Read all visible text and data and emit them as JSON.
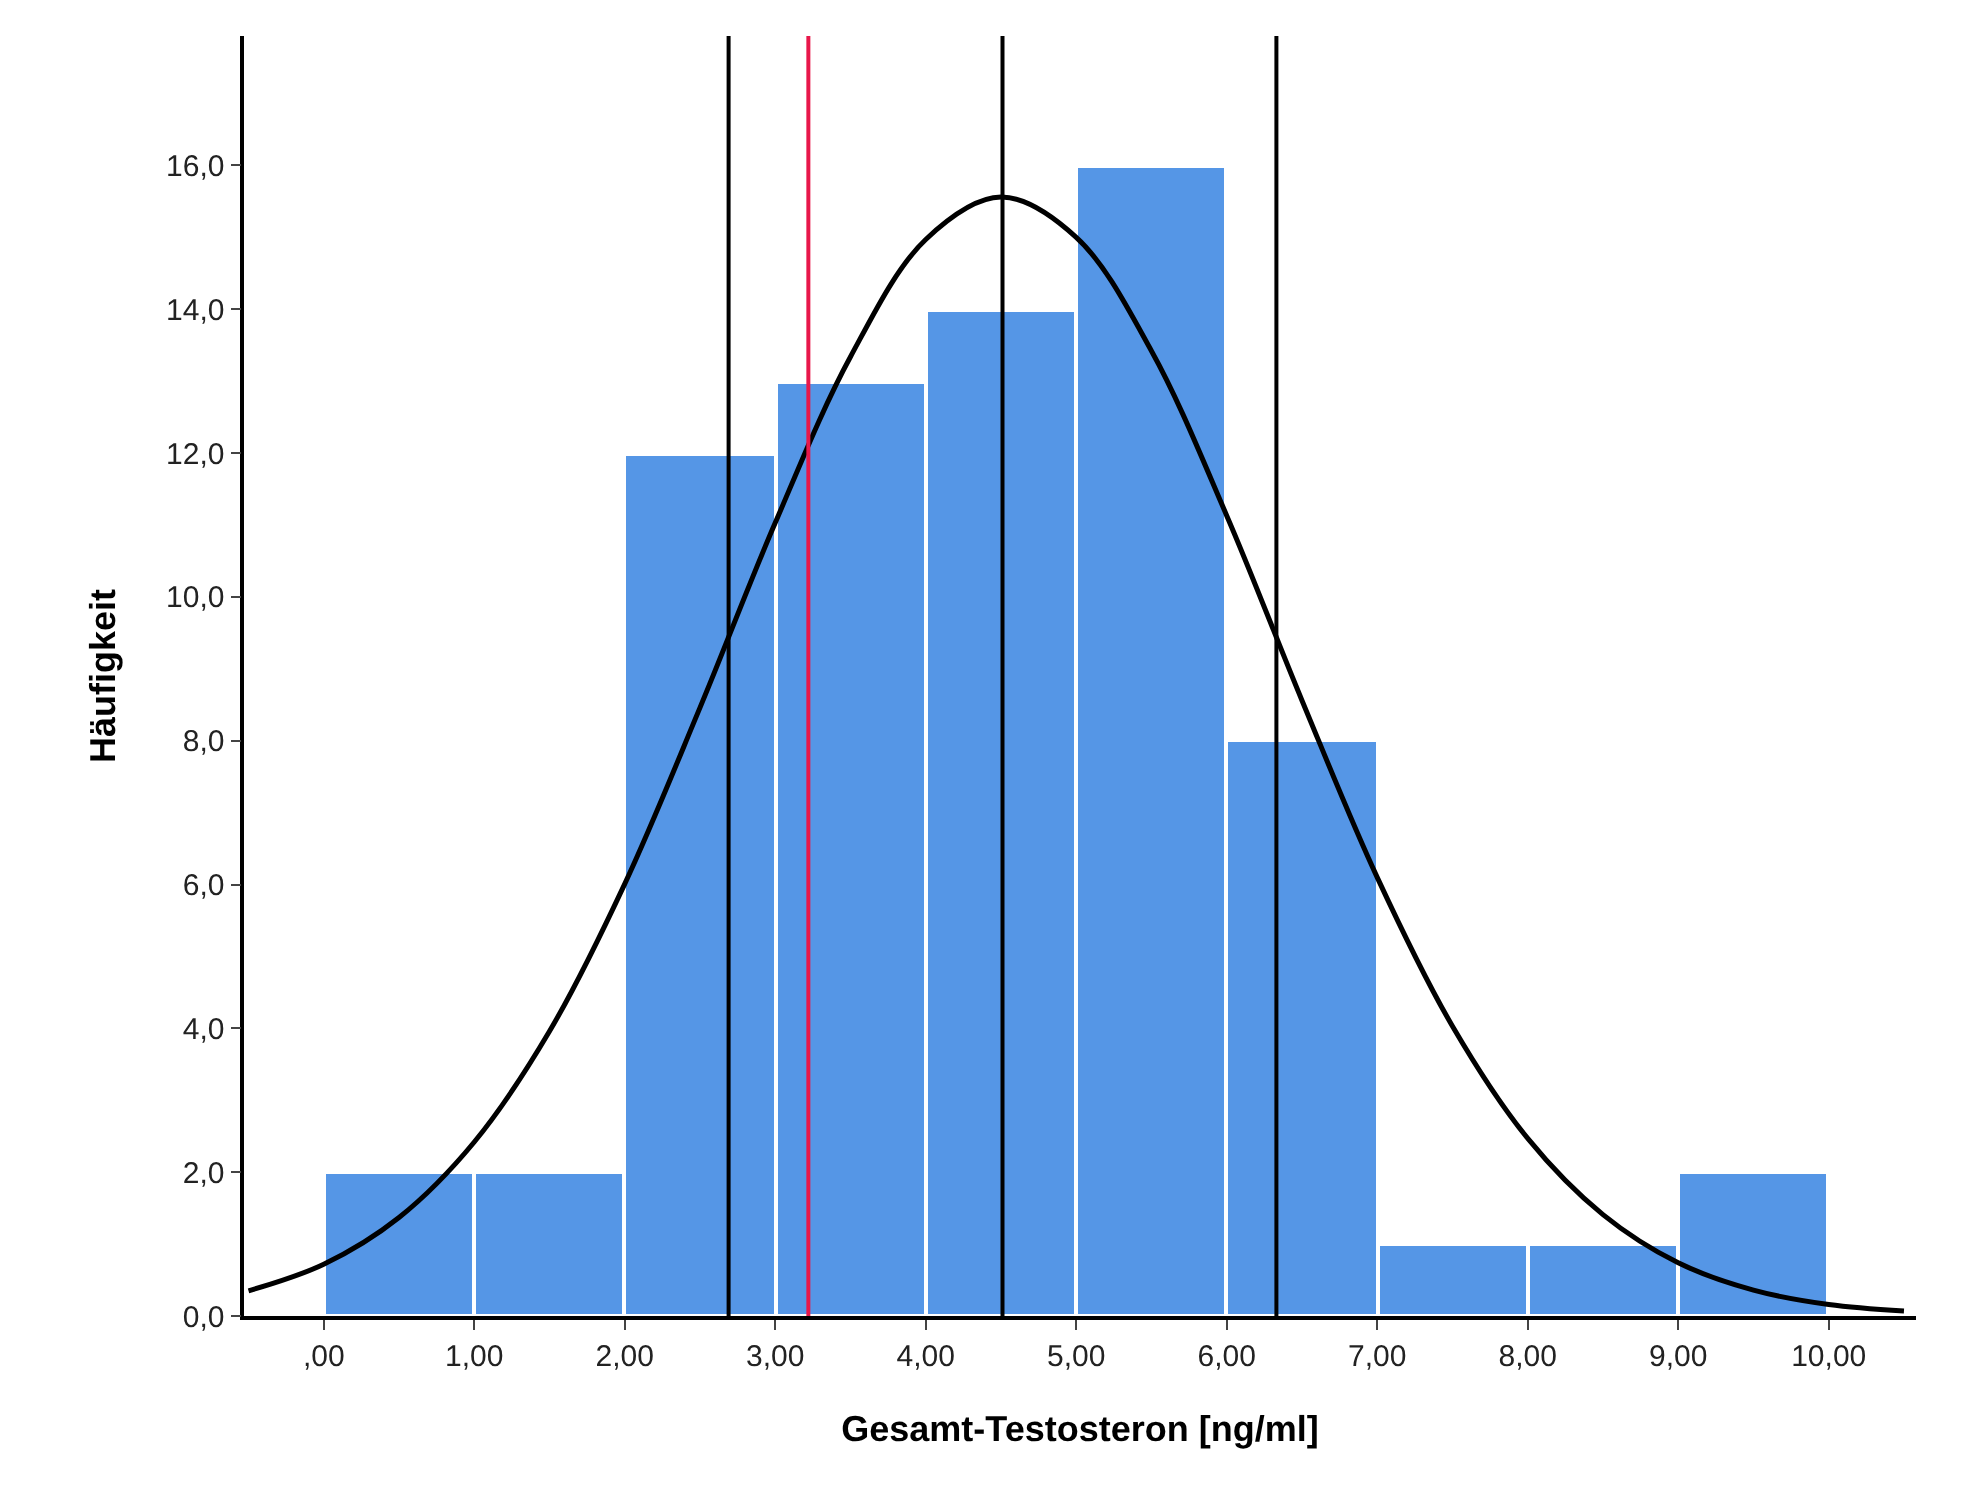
{
  "chart_data": {
    "type": "histogram",
    "xlabel": "Gesamt-Testosteron [ng/ml]",
    "ylabel": "Häufigkeit",
    "bins": [
      0,
      1,
      2,
      3,
      4,
      5,
      6,
      7,
      8,
      9,
      10
    ],
    "values": [
      2,
      2,
      12,
      13,
      14,
      16,
      8,
      1,
      1,
      2
    ],
    "color": "#5596e6",
    "series": [
      {
        "type": "line",
        "color": "#000000",
        "x": [
          -0.5,
          0,
          0.5,
          1,
          1.5,
          2,
          2.5,
          3,
          3.5,
          4,
          4.5,
          5,
          5.5,
          6,
          6.5,
          7,
          7.5,
          8,
          8.5,
          9,
          9.5,
          10,
          10.5
        ],
        "values": [
          0.35,
          0.72,
          1.37,
          2.42,
          3.96,
          6.01,
          8.46,
          11.03,
          13.34,
          14.97,
          15.56,
          15.0,
          13.42,
          11.13,
          8.56,
          6.1,
          4.03,
          2.47,
          1.41,
          0.74,
          0.36,
          0.16,
          0.07
        ]
      }
    ],
    "ref_lines": [
      {
        "axis": "x",
        "value": 2.69,
        "color": "#000000"
      },
      {
        "axis": "x",
        "value": 3.22,
        "color": "#e8174a"
      },
      {
        "axis": "x",
        "value": 4.51,
        "color": "#000000"
      },
      {
        "axis": "x",
        "value": 6.33,
        "color": "#000000"
      }
    ],
    "xlim": [
      -0.53,
      10.58
    ],
    "ylim": [
      0,
      17.8
    ],
    "xticks": [
      {
        "value": 0,
        "label": ",00"
      },
      {
        "value": 1,
        "label": "1,00"
      },
      {
        "value": 2,
        "label": "2,00"
      },
      {
        "value": 3,
        "label": "3,00"
      },
      {
        "value": 4,
        "label": "4,00"
      },
      {
        "value": 5,
        "label": "5,00"
      },
      {
        "value": 6,
        "label": "6,00"
      },
      {
        "value": 7,
        "label": "7,00"
      },
      {
        "value": 8,
        "label": "8,00"
      },
      {
        "value": 9,
        "label": "9,00"
      },
      {
        "value": 10,
        "label": "10,00"
      }
    ],
    "yticks": [
      {
        "value": 0,
        "label": "0,0"
      },
      {
        "value": 2,
        "label": "2,0"
      },
      {
        "value": 4,
        "label": "4,0"
      },
      {
        "value": 6,
        "label": "6,0"
      },
      {
        "value": 8,
        "label": "8,0"
      },
      {
        "value": 10,
        "label": "10,0"
      },
      {
        "value": 12,
        "label": "12,0"
      },
      {
        "value": 14,
        "label": "14,0"
      },
      {
        "value": 16,
        "label": "16,0"
      }
    ],
    "grid": false,
    "legend": false
  }
}
